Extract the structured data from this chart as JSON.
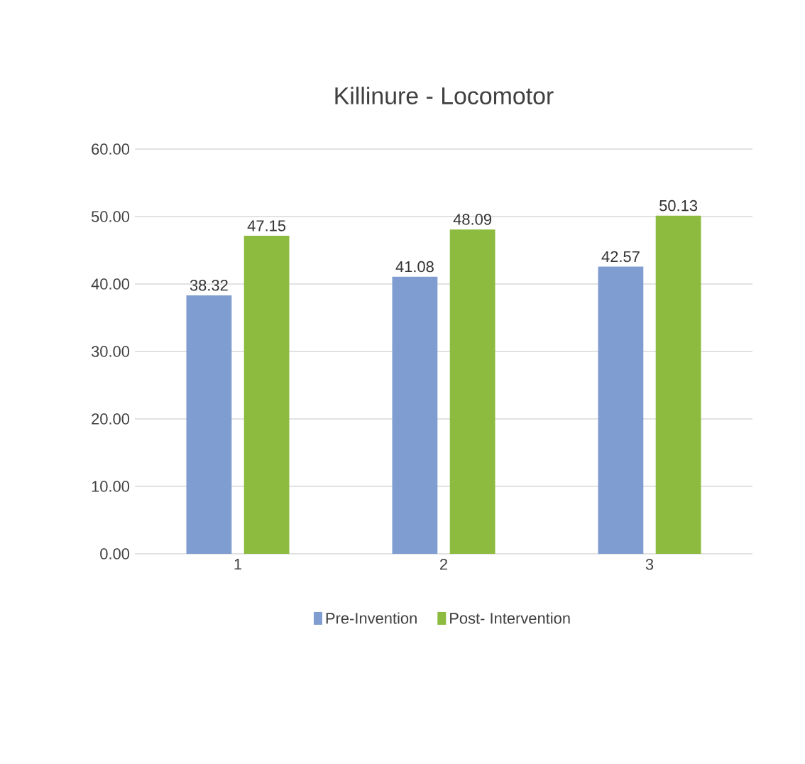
{
  "chart_data": {
    "type": "bar",
    "title": "Killinure - Locomotor",
    "categories": [
      "1",
      "2",
      "3"
    ],
    "series": [
      {
        "name": "Pre-Invention",
        "color": "#7f9dd0",
        "values": [
          38.32,
          41.08,
          42.57
        ]
      },
      {
        "name": "Post- Intervention",
        "color": "#8dbb3f",
        "values": [
          47.15,
          48.09,
          50.13
        ]
      }
    ],
    "ylim": [
      0,
      60
    ],
    "yticks": [
      {
        "value": 0,
        "label": "0.00"
      },
      {
        "value": 10,
        "label": "10.00"
      },
      {
        "value": 20,
        "label": "20.00"
      },
      {
        "value": 30,
        "label": "30.00"
      },
      {
        "value": 40,
        "label": "40.00"
      },
      {
        "value": 50,
        "label": "50.00"
      },
      {
        "value": 60,
        "label": "60.00"
      }
    ],
    "grid": "y",
    "legend": "bottom",
    "data_labels": true
  }
}
